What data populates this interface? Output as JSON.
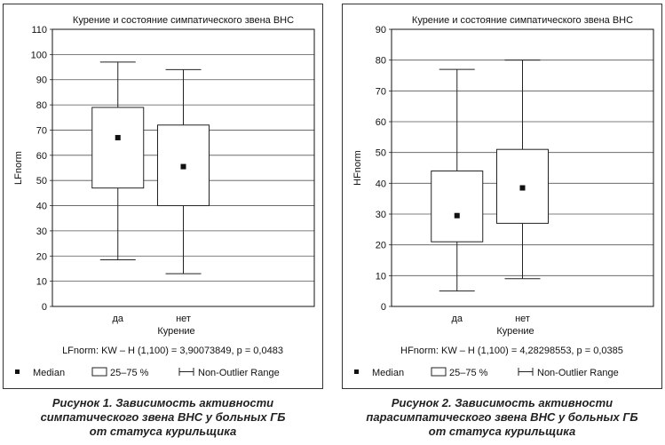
{
  "chart_data": [
    {
      "type": "boxplot",
      "title": "Курение и состояние симпатического звена ВНС",
      "xlabel": "Курение",
      "ylabel": "LFnorm",
      "ylim": [
        0,
        110
      ],
      "yticks": [
        0,
        10,
        20,
        30,
        40,
        50,
        60,
        70,
        80,
        90,
        100,
        110
      ],
      "categories": [
        "да",
        "нет"
      ],
      "median": [
        67,
        55.5
      ],
      "q1": [
        47,
        40
      ],
      "q3": [
        79,
        72
      ],
      "whisker_low": [
        18.5,
        13
      ],
      "whisker_high": [
        97,
        94
      ],
      "stat": "LFnorm: KW – H (1,100) = 3,90073849, p = 0,0483",
      "legend": [
        "Median",
        "25–75 %",
        "Non-Outlier Range"
      ],
      "grid": true
    },
    {
      "type": "boxplot",
      "title": "Курение и состояние симпатического звена ВНС",
      "xlabel": "Курение",
      "ylabel": "HFnorm",
      "ylim": [
        0,
        90
      ],
      "yticks": [
        0,
        10,
        20,
        30,
        40,
        50,
        60,
        70,
        80,
        90
      ],
      "categories": [
        "да",
        "нет"
      ],
      "median": [
        29.5,
        38.5
      ],
      "q1": [
        21,
        27
      ],
      "q3": [
        44,
        51
      ],
      "whisker_low": [
        5,
        9
      ],
      "whisker_high": [
        77,
        80
      ],
      "stat": "HFnorm: KW – H (1,100) = 4,28298553, p = 0,0385",
      "legend": [
        "Median",
        "25–75 %",
        "Non-Outlier Range"
      ],
      "grid": true
    }
  ],
  "captions": [
    {
      "title": "Рисунок 1. Зависимость активности",
      "line2": "симпатического звена ВНС у больных ГБ",
      "line3": "от статуса курильщика"
    },
    {
      "title": "Рисунок 2. Зависимость активности",
      "line2": "парасимпатического звена ВНС у больных ГБ",
      "line3": "от статуса курильщика"
    }
  ]
}
